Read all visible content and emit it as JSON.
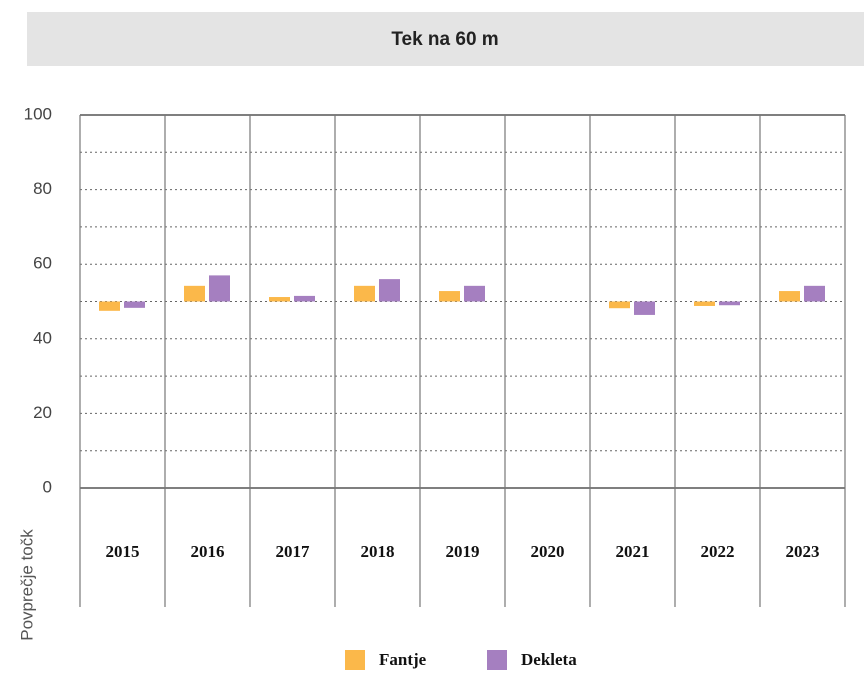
{
  "chart_data": {
    "type": "bar",
    "title": "Tek na 60 m",
    "y_label": "Povprečje točk",
    "categories": [
      "2015",
      "2016",
      "2017",
      "2018",
      "2019",
      "2020",
      "2021",
      "2022",
      "2023"
    ],
    "baseline": 50,
    "series": [
      {
        "name": "Fantje",
        "color": "#fbb84a",
        "values": [
          47.5,
          54.2,
          51.2,
          54.2,
          52.8,
          null,
          48.2,
          48.8,
          52.8
        ]
      },
      {
        "name": "Dekleta",
        "color": "#a57fc0",
        "values": [
          48.3,
          57,
          51.5,
          56,
          54.2,
          null,
          46.4,
          49,
          54.2
        ]
      }
    ],
    "ylim": [
      0,
      100
    ],
    "yticks": [
      0,
      20,
      40,
      60,
      80,
      100
    ],
    "minor_yticks": [
      10,
      30,
      50,
      70,
      90
    ],
    "grid": true
  }
}
